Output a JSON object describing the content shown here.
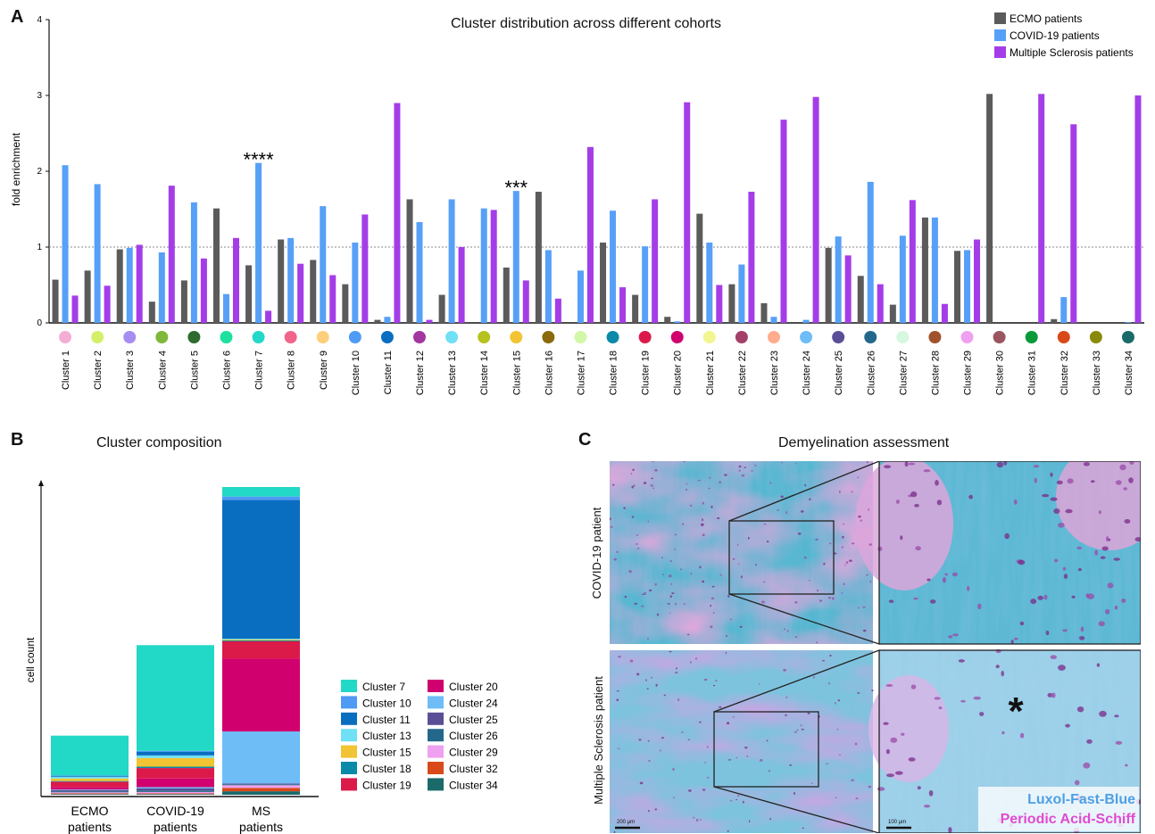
{
  "panels": {
    "a": "A",
    "b": "B",
    "c": "C"
  },
  "chart_data": [
    {
      "type": "bar",
      "title": "Cluster distribution across different cohorts",
      "xlabel": "",
      "ylabel": "fold enrichment",
      "ylim": [
        0,
        4
      ],
      "yticks": [
        "0",
        "1",
        "2",
        "3",
        "4"
      ],
      "reference_line": 1,
      "grid": false,
      "legend_position": "top-right",
      "categories": [
        "Cluster 1",
        "Cluster 2",
        "Cluster 3",
        "Cluster 4",
        "Cluster 5",
        "Cluster 6",
        "Cluster 7",
        "Cluster 8",
        "Cluster 9",
        "Cluster 10",
        "Cluster 11",
        "Cluster 12",
        "Cluster 13",
        "Cluster 14",
        "Cluster 15",
        "Cluster 16",
        "Cluster 17",
        "Cluster 18",
        "Cluster 19",
        "Cluster 20",
        "Cluster 21",
        "Cluster 22",
        "Cluster 23",
        "Cluster 24",
        "Cluster 25",
        "Cluster 26",
        "Cluster 27",
        "Cluster 28",
        "Cluster 29",
        "Cluster 30",
        "Cluster 31",
        "Cluster 32",
        "Cluster 33",
        "Cluster 34"
      ],
      "cluster_colors": [
        "#f4aed3",
        "#d4f06a",
        "#a58df2",
        "#7fb83a",
        "#2e6b2e",
        "#1ee0a0",
        "#22d8c6",
        "#f2658a",
        "#ffce7a",
        "#4f9af5",
        "#0a6ec0",
        "#a237a0",
        "#6fe0f5",
        "#b5c21f",
        "#f2c332",
        "#8a6a0a",
        "#d2f7a8",
        "#0a8aa8",
        "#dc1a4a",
        "#d0006e",
        "#f2f590",
        "#a2406a",
        "#ffab8e",
        "#6ebdf7",
        "#5a4f96",
        "#23688a",
        "#d6f7e0",
        "#a0522d",
        "#f0a0f0",
        "#9a5560",
        "#0a9a3a",
        "#d84a1a",
        "#8a8a0a",
        "#1a6a6a"
      ],
      "series": [
        {
          "name": "ECMO patients",
          "color": "#5b5b5b",
          "values": [
            0.57,
            0.69,
            0.97,
            0.28,
            0.56,
            1.51,
            0.76,
            1.1,
            0.83,
            0.51,
            0.04,
            1.63,
            0.37,
            0,
            0.73,
            1.73,
            0,
            1.06,
            0.37,
            0.08,
            1.44,
            0.51,
            0.26,
            0,
            0.99,
            0.62,
            0.24,
            1.39,
            0.95,
            3.02,
            0,
            0.05,
            0,
            0
          ]
        },
        {
          "name": "COVID-19 patients",
          "color": "#57a0f7",
          "values": [
            2.08,
            1.83,
            0.99,
            0.93,
            1.59,
            0.38,
            2.11,
            1.12,
            1.54,
            1.06,
            0.08,
            1.33,
            1.63,
            1.51,
            1.74,
            0.96,
            0.69,
            1.48,
            1.01,
            0.02,
            1.06,
            0.77,
            0.08,
            0.04,
            1.14,
            1.86,
            1.15,
            1.39,
            0.96,
            0,
            0,
            0.34,
            0,
            0.01
          ]
        },
        {
          "name": "Multiple Sclerosis patients",
          "color": "#a43de8",
          "values": [
            0.36,
            0.49,
            1.03,
            1.81,
            0.85,
            1.12,
            0.16,
            0.78,
            0.63,
            1.43,
            2.9,
            0.04,
            1.0,
            1.49,
            0.56,
            0.32,
            2.32,
            0.47,
            1.63,
            2.91,
            0.5,
            1.73,
            2.68,
            2.98,
            0.89,
            0.51,
            1.62,
            0.25,
            1.1,
            0,
            3.02,
            2.62,
            0,
            3.0
          ]
        }
      ],
      "annotations": [
        {
          "category": "Cluster 7",
          "text": "****"
        },
        {
          "category": "Cluster 15",
          "text": "***"
        }
      ]
    },
    {
      "type": "bar",
      "stacked": true,
      "title": "Cluster composition",
      "xlabel": "",
      "ylabel": "cell count",
      "categories": [
        "ECMO patients",
        "COVID-19 patients",
        "MS patients"
      ],
      "category_lines": [
        [
          "ECMO",
          "patients"
        ],
        [
          "COVID-19",
          "patients"
        ],
        [
          "MS",
          "patients"
        ]
      ],
      "legend_position": "right",
      "series": [
        {
          "name": "Cluster 34",
          "color": "#1a6a6a",
          "values": [
            0.4,
            0.4,
            2.0
          ]
        },
        {
          "name": "Cluster 32",
          "color": "#d84a1a",
          "values": [
            0.4,
            0.4,
            2.0
          ]
        },
        {
          "name": "Cluster 29",
          "color": "#f0a0f0",
          "values": [
            0.6,
            0.8,
            1.5
          ]
        },
        {
          "name": "Cluster 26",
          "color": "#23688a",
          "values": [
            0.6,
            0.8,
            0.5
          ]
        },
        {
          "name": "Cluster 25",
          "color": "#5a4f96",
          "values": [
            0.6,
            1.2,
            0.5
          ]
        },
        {
          "name": "Cluster 24",
          "color": "#6ebdf7",
          "values": [
            0.4,
            0.8,
            30
          ]
        },
        {
          "name": "Cluster 20",
          "color": "#d0006e",
          "values": [
            1.5,
            5.0,
            42
          ]
        },
        {
          "name": "Cluster 19",
          "color": "#dc1a4a",
          "values": [
            3.0,
            6.0,
            10
          ]
        },
        {
          "name": "Cluster 18",
          "color": "#0a8aa8",
          "values": [
            0.4,
            0.8,
            0.5
          ]
        },
        {
          "name": "Cluster 15",
          "color": "#f2c332",
          "values": [
            1.5,
            5.0,
            0.5
          ]
        },
        {
          "name": "Cluster 13",
          "color": "#6fe0f5",
          "values": [
            1.0,
            1.5,
            0.5
          ]
        },
        {
          "name": "Cluster 11",
          "color": "#0a6ec0",
          "values": [
            0.4,
            2.0,
            80
          ]
        },
        {
          "name": "Cluster 10",
          "color": "#4f9af5",
          "values": [
            0.3,
            0.6,
            2.0
          ]
        },
        {
          "name": "Cluster 7",
          "color": "#22d8c6",
          "values": [
            23,
            61,
            5.5
          ]
        }
      ],
      "legend_col1": [
        "Cluster 7",
        "Cluster 10",
        "Cluster 11",
        "Cluster 13",
        "Cluster 15",
        "Cluster 18",
        "Cluster 19"
      ],
      "legend_col2": [
        "Cluster 20",
        "Cluster 24",
        "Cluster 25",
        "Cluster 26",
        "Cluster 29",
        "Cluster 32",
        "Cluster 34"
      ]
    }
  ],
  "panel_c": {
    "title": "Demyelination assessment",
    "row_labels": [
      "COVID-19 patient",
      "Multiple Sclerosis patient"
    ],
    "scale_bars": [
      "200 µm",
      "100 µm"
    ],
    "asterisk": "*",
    "stains": [
      {
        "label": "Luxol-Fast-Blue",
        "color": "#4d9fe6"
      },
      {
        "label": "Periodic Acid-Schiff",
        "color": "#e04bd0"
      }
    ]
  }
}
